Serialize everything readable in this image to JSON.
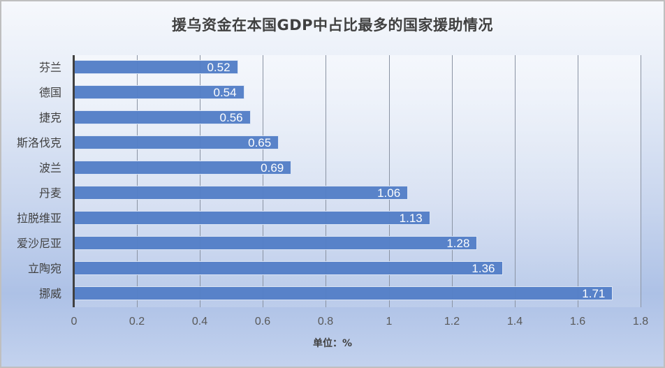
{
  "chart_data": {
    "type": "bar",
    "orientation": "horizontal",
    "title": "援乌资金在本国GDP中占比最多的国家援助情况",
    "xlabel": "单位：%",
    "ylabel": "",
    "categories": [
      "芬兰",
      "德国",
      "捷克",
      "斯洛伐克",
      "波兰",
      "丹麦",
      "拉脱维亚",
      "爱沙尼亚",
      "立陶宛",
      "挪威"
    ],
    "values": [
      0.52,
      0.54,
      0.56,
      0.65,
      0.69,
      1.06,
      1.13,
      1.28,
      1.36,
      1.71
    ],
    "value_labels": [
      "0.52",
      "0.54",
      "0.56",
      "0.65",
      "0.69",
      "1.06",
      "1.13",
      "1.28",
      "1.36",
      "1.71"
    ],
    "xlim": [
      0,
      1.8
    ],
    "xticks": [
      "0",
      "0.2",
      "0.4",
      "0.6",
      "0.8",
      "1",
      "1.2",
      "1.4",
      "1.6",
      "1.8"
    ],
    "grid": true,
    "legend": null,
    "colors": {
      "bar": "#5580c8",
      "bar_border": "#dbe5f5",
      "label": "#ffffff"
    }
  }
}
